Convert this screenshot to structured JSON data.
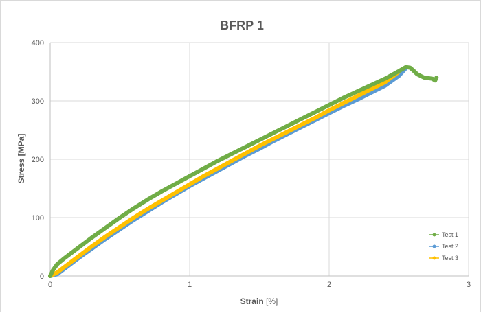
{
  "chart_data": {
    "type": "scatter",
    "title": "BFRP 1",
    "xlabel_main": "Strain",
    "xlabel_unit": "[%]",
    "ylabel": "Stress [MPa]",
    "xlim": [
      0,
      3
    ],
    "ylim": [
      0,
      400
    ],
    "x_ticks": [
      0,
      1,
      2,
      3
    ],
    "y_ticks": [
      0,
      100,
      200,
      300,
      400
    ],
    "grid": true,
    "legend_position": "bottom-right",
    "series": [
      {
        "name": "Test 1",
        "color": "#70ad47",
        "x": [
          0,
          0.02,
          0.05,
          0.1,
          0.2,
          0.3,
          0.4,
          0.5,
          0.6,
          0.7,
          0.8,
          0.9,
          1.0,
          1.1,
          1.2,
          1.3,
          1.4,
          1.5,
          1.6,
          1.7,
          1.8,
          1.9,
          2.0,
          2.1,
          2.2,
          2.3,
          2.4,
          2.5,
          2.55,
          2.58,
          2.6,
          2.63,
          2.68,
          2.74,
          2.76,
          2.77
        ],
        "y": [
          0,
          10,
          20,
          30,
          48,
          66,
          83,
          100,
          116,
          131,
          145,
          158,
          171,
          184,
          197,
          209,
          221,
          233,
          245,
          257,
          269,
          281,
          293,
          305,
          316,
          327,
          338,
          351,
          358,
          357,
          353,
          346,
          340,
          338,
          335,
          340
        ]
      },
      {
        "name": "Test 2",
        "color": "#5b9bd5",
        "x": [
          0,
          0.05,
          0.1,
          0.2,
          0.3,
          0.4,
          0.5,
          0.6,
          0.7,
          0.8,
          0.9,
          1.0,
          1.1,
          1.2,
          1.3,
          1.4,
          1.5,
          1.6,
          1.7,
          1.8,
          1.9,
          2.0,
          2.1,
          2.2,
          2.3,
          2.4,
          2.5,
          2.55
        ],
        "y": [
          0,
          3,
          12,
          30,
          47,
          64,
          80,
          96,
          111,
          126,
          140,
          154,
          167,
          180,
          193,
          206,
          218,
          231,
          243,
          255,
          267,
          279,
          291,
          302,
          314,
          326,
          343,
          356
        ]
      },
      {
        "name": "Test 3",
        "color": "#ffc000",
        "x": [
          0,
          0.05,
          0.1,
          0.2,
          0.3,
          0.4,
          0.5,
          0.6,
          0.7,
          0.8,
          0.9,
          1.0,
          1.1,
          1.2,
          1.3,
          1.4,
          1.5,
          1.6,
          1.7,
          1.8,
          1.9,
          2.0,
          2.1,
          2.2,
          2.3,
          2.4,
          2.5
        ],
        "y": [
          0,
          6,
          15,
          33,
          51,
          68,
          84,
          100,
          115,
          129,
          143,
          157,
          171,
          184,
          197,
          210,
          223,
          235,
          247,
          259,
          271,
          284,
          296,
          308,
          320,
          332,
          350
        ]
      }
    ]
  }
}
